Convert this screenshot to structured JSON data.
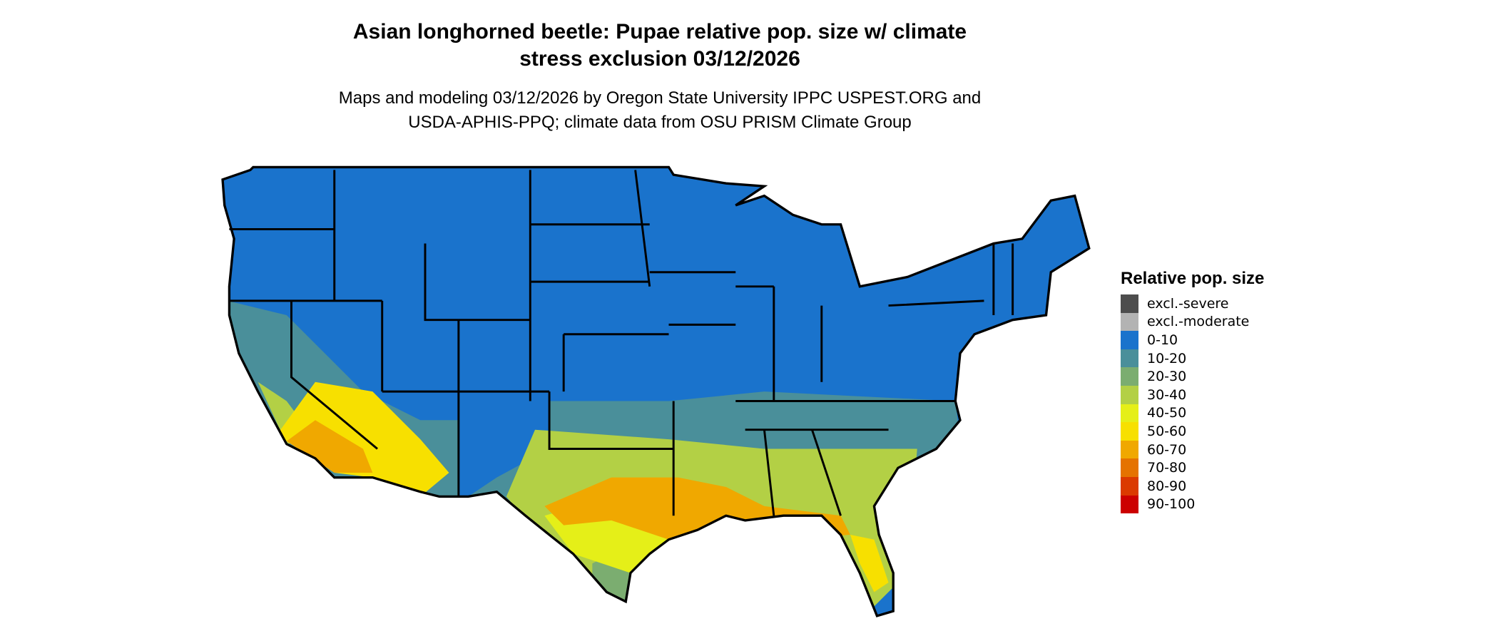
{
  "title_line1": "Asian longhorned beetle: Pupae relative pop. size w/ climate",
  "title_line2": "stress exclusion 03/12/2026",
  "subtitle_line1": "Maps and modeling 03/12/2026 by Oregon State University IPPC USPEST.ORG and",
  "subtitle_line2": "USDA-APHIS-PPQ; climate data from OSU PRISM Climate Group",
  "legend": {
    "title": "Relative pop. size",
    "items": [
      {
        "label": "excl.-severe",
        "color": "#4d4d4d"
      },
      {
        "label": "excl.-moderate",
        "color": "#b3b3b3"
      },
      {
        "label": "0-10",
        "color": "#1a73cc"
      },
      {
        "label": "10-20",
        "color": "#4a8f9a"
      },
      {
        "label": "20-30",
        "color": "#7bad70"
      },
      {
        "label": "30-40",
        "color": "#b3d045"
      },
      {
        "label": "40-50",
        "color": "#e5ef18"
      },
      {
        "label": "50-60",
        "color": "#f7e000"
      },
      {
        "label": "60-70",
        "color": "#f0a800"
      },
      {
        "label": "70-80",
        "color": "#e57300"
      },
      {
        "label": "80-90",
        "color": "#db3a00"
      },
      {
        "label": "90-100",
        "color": "#cc0000"
      }
    ]
  }
}
